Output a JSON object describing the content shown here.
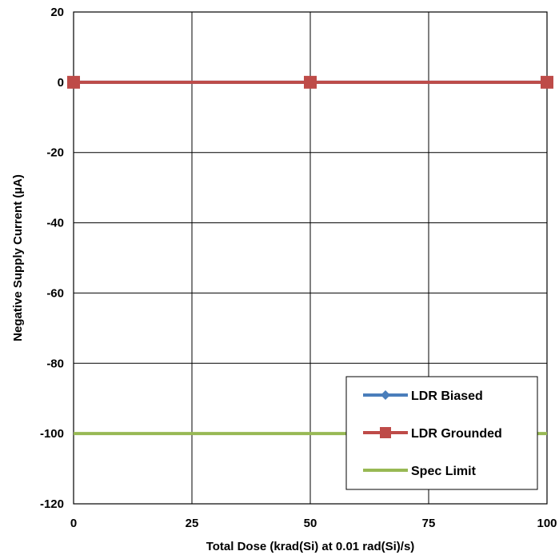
{
  "chart_data": {
    "type": "line",
    "xlabel": "Total Dose (krad(Si) at 0.01 rad(Si)/s)",
    "ylabel": "Negative Supply Current (µA)",
    "xlim": [
      0,
      100
    ],
    "ylim": [
      -120,
      20
    ],
    "x_ticks": [
      0,
      25,
      50,
      75,
      100
    ],
    "y_ticks": [
      20,
      0,
      -20,
      -40,
      -60,
      -80,
      -100,
      -120
    ],
    "grid": true,
    "legend_position": "bottom-right",
    "series": [
      {
        "name": "LDR Biased",
        "color": "#4a7ebb",
        "marker": "diamond",
        "x": [
          0,
          50,
          100
        ],
        "y": [
          0,
          0,
          0
        ]
      },
      {
        "name": "LDR Grounded",
        "color": "#be4b48",
        "marker": "square",
        "x": [
          0,
          50,
          100
        ],
        "y": [
          0,
          0,
          0
        ]
      },
      {
        "name": "Spec Limit",
        "color": "#98b954",
        "marker": "none",
        "x": [
          0,
          100
        ],
        "y": [
          -100,
          -100
        ]
      }
    ]
  }
}
